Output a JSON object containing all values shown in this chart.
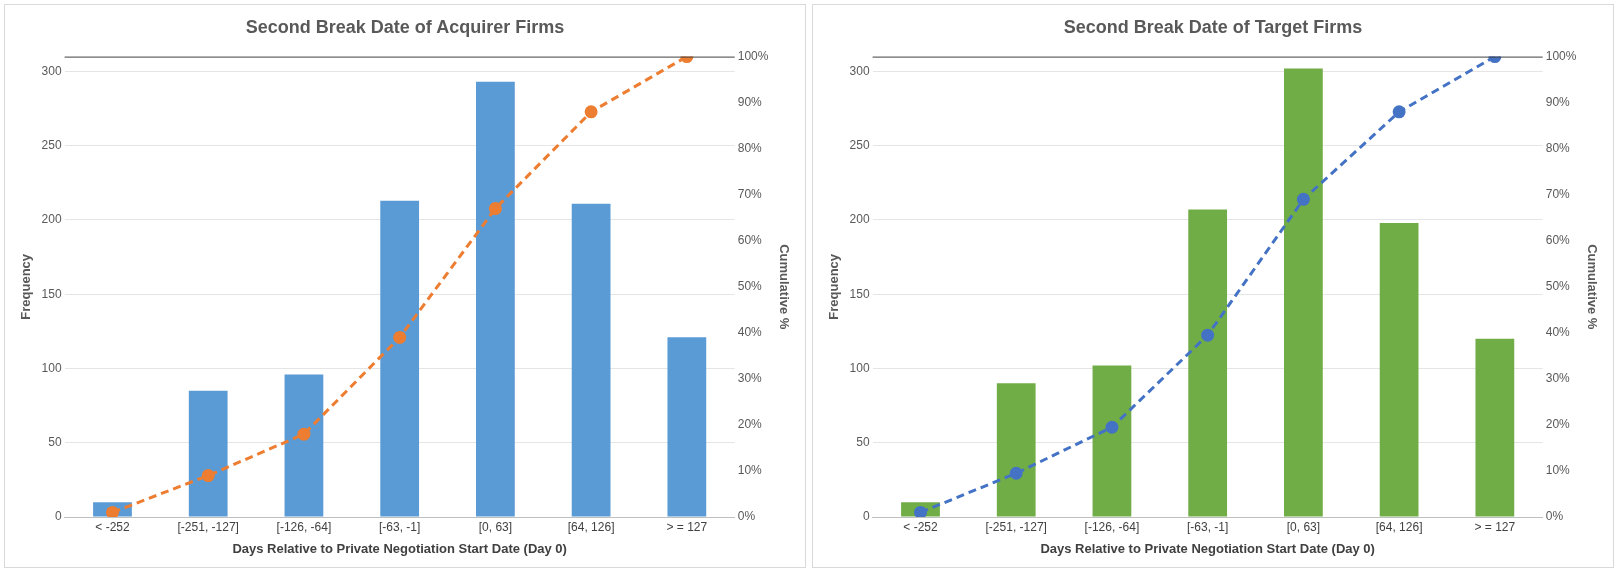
{
  "chart_data": [
    {
      "type": "bar",
      "title": "Second Break Date of Acquirer Firms",
      "xlabel": "Days Relative to Private Negotiation Start Date (Day 0)",
      "ylabel": "Frequency",
      "y2label": "Cumulative %",
      "categories": [
        "< -252",
        "[-251, -127]",
        "[-126, -64]",
        "[-63, -1]",
        "[0, 63]",
        "[64, 126]",
        "> = 127"
      ],
      "series": [
        {
          "color": "#5b9bd5",
          "values": [
            10,
            85,
            96,
            213,
            293,
            211,
            121
          ]
        },
        {
          "type": "line",
          "axis": "y2",
          "color": "#ed7d31",
          "marker": "circle",
          "line_style": "dashed",
          "values": [
            1,
            9,
            18,
            39,
            67,
            88,
            100
          ]
        }
      ],
      "ylim": [
        0,
        310
      ],
      "yticks": [
        0,
        50,
        100,
        150,
        200,
        250,
        300
      ],
      "y2lim": [
        0,
        100
      ],
      "y2ticks": [
        {
          "value": 0,
          "label": "0%"
        },
        {
          "value": 10,
          "label": "10%"
        },
        {
          "value": 20,
          "label": "20%"
        },
        {
          "value": 30,
          "label": "30%"
        },
        {
          "value": 40,
          "label": "40%"
        },
        {
          "value": 50,
          "label": "50%"
        },
        {
          "value": 60,
          "label": "60%"
        },
        {
          "value": 70,
          "label": "70%"
        },
        {
          "value": 80,
          "label": "80%"
        },
        {
          "value": 90,
          "label": "90%"
        },
        {
          "value": 100,
          "label": "100%"
        }
      ],
      "grid": "y",
      "legend": false
    },
    {
      "type": "bar",
      "title": "Second Break Date of Target Firms",
      "xlabel": "Days Relative to Private Negotiation Start Date (Day 0)",
      "ylabel": "Frequency",
      "y2label": "Cumulative %",
      "categories": [
        "< -252",
        "[-251, -127]",
        "[-126, -64]",
        "[-63, -1]",
        "[0, 63]",
        "[64, 126]",
        "> = 127"
      ],
      "series": [
        {
          "color": "#70ad47",
          "values": [
            10,
            90,
            102,
            207,
            302,
            198,
            120
          ]
        },
        {
          "type": "line",
          "axis": "y2",
          "color": "#4472c4",
          "marker": "circle",
          "line_style": "dashed",
          "values": [
            1,
            9.5,
            19.5,
            39.5,
            69,
            88,
            100
          ]
        }
      ],
      "ylim": [
        0,
        310
      ],
      "yticks": [
        0,
        50,
        100,
        150,
        200,
        250,
        300
      ],
      "y2lim": [
        0,
        100
      ],
      "y2ticks": [
        {
          "value": 0,
          "label": "0%"
        },
        {
          "value": 10,
          "label": "10%"
        },
        {
          "value": 20,
          "label": "20%"
        },
        {
          "value": 30,
          "label": "30%"
        },
        {
          "value": 40,
          "label": "40%"
        },
        {
          "value": 50,
          "label": "50%"
        },
        {
          "value": 60,
          "label": "60%"
        },
        {
          "value": 70,
          "label": "70%"
        },
        {
          "value": 80,
          "label": "80%"
        },
        {
          "value": 90,
          "label": "90%"
        },
        {
          "value": 100,
          "label": "100%"
        }
      ],
      "grid": "y",
      "legend": false
    }
  ]
}
